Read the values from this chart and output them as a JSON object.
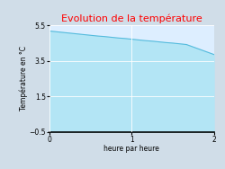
{
  "title": "Evolution de la température",
  "title_color": "#ff0000",
  "xlabel": "heure par heure",
  "ylabel": "Température en °C",
  "ylim": [
    -0.5,
    5.5
  ],
  "xlim": [
    0,
    2
  ],
  "yticks": [
    -0.5,
    1.5,
    3.5,
    5.5
  ],
  "xticks": [
    0,
    1,
    2
  ],
  "x_data": [
    0.0,
    0.0833,
    0.1667,
    0.25,
    0.3333,
    0.4167,
    0.5,
    0.5833,
    0.6667,
    0.75,
    0.8333,
    0.9167,
    1.0,
    1.0833,
    1.1667,
    1.25,
    1.3333,
    1.4167,
    1.5,
    1.5833,
    1.6667,
    1.75,
    1.8333,
    1.9167,
    2.0
  ],
  "y_data": [
    5.18,
    5.14,
    5.1,
    5.06,
    5.02,
    4.98,
    4.94,
    4.9,
    4.87,
    4.83,
    4.79,
    4.76,
    4.72,
    4.68,
    4.64,
    4.61,
    4.57,
    4.53,
    4.5,
    4.46,
    4.42,
    4.28,
    4.14,
    4.0,
    3.86
  ],
  "fill_color": "#b3e5f5",
  "fill_alpha": 1.0,
  "line_color": "#55bbdd",
  "line_width": 0.8,
  "plot_bg_color": "#ddeeff",
  "outer_bg_color": "#d0dde8",
  "grid_color": "#ffffff",
  "title_fontsize": 8,
  "label_fontsize": 5.5,
  "tick_fontsize": 5.5
}
